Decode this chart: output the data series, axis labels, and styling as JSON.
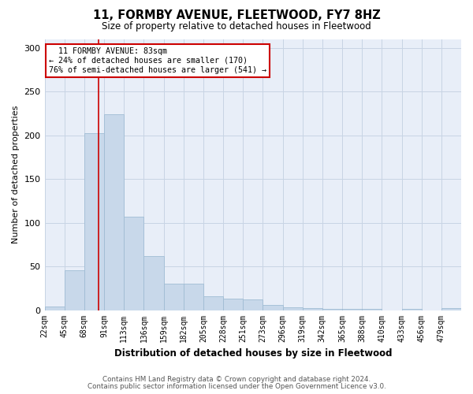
{
  "title": "11, FORMBY AVENUE, FLEETWOOD, FY7 8HZ",
  "subtitle": "Size of property relative to detached houses in Fleetwood",
  "xlabel": "Distribution of detached houses by size in Fleetwood",
  "ylabel": "Number of detached properties",
  "bar_color": "#c8d8ea",
  "bar_edge_color": "#a0bcd4",
  "categories": [
    "22sqm",
    "45sqm",
    "68sqm",
    "91sqm",
    "113sqm",
    "136sqm",
    "159sqm",
    "182sqm",
    "205sqm",
    "228sqm",
    "251sqm",
    "273sqm",
    "296sqm",
    "319sqm",
    "342sqm",
    "365sqm",
    "388sqm",
    "410sqm",
    "433sqm",
    "456sqm",
    "479sqm"
  ],
  "values": [
    4,
    46,
    203,
    224,
    107,
    62,
    30,
    30,
    16,
    13,
    12,
    6,
    3,
    2,
    1,
    1,
    1,
    0,
    1,
    0,
    2
  ],
  "property_label": "11 FORMBY AVENUE: 83sqm",
  "pct_smaller": "24% of detached houses are smaller (170)",
  "pct_larger": "76% of semi-detached houses are larger (541)",
  "vline_bin": 2.72,
  "annotation_box_color": "#ffffff",
  "annotation_box_edge": "#cc0000",
  "ylim": [
    0,
    310
  ],
  "yticks": [
    0,
    50,
    100,
    150,
    200,
    250,
    300
  ],
  "grid_color": "#c8d4e4",
  "background_color": "#e8eef8",
  "footer1": "Contains HM Land Registry data © Crown copyright and database right 2024.",
  "footer2": "Contains public sector information licensed under the Open Government Licence v3.0."
}
